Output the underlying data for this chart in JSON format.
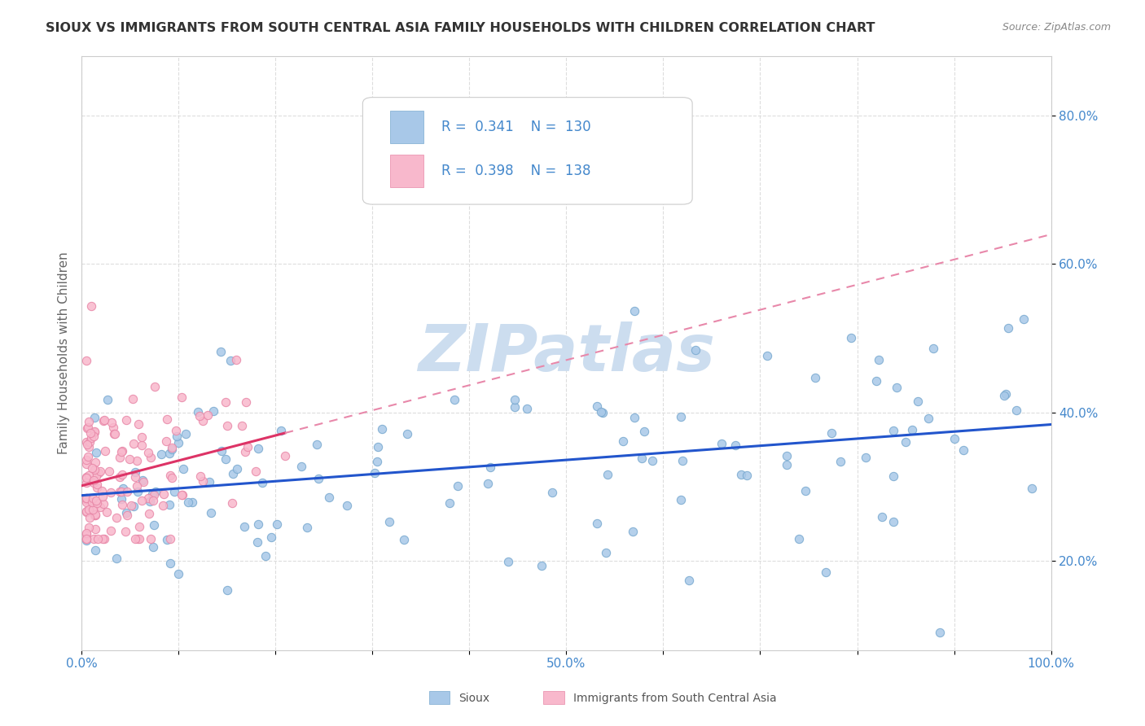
{
  "title": "SIOUX VS IMMIGRANTS FROM SOUTH CENTRAL ASIA FAMILY HOUSEHOLDS WITH CHILDREN CORRELATION CHART",
  "source": "Source: ZipAtlas.com",
  "ylabel": "Family Households with Children",
  "sioux_R": 0.341,
  "sioux_N": 130,
  "immig_R": 0.398,
  "immig_N": 138,
  "sioux_color": "#a8c8e8",
  "sioux_edge_color": "#7aaad0",
  "immig_color": "#f8b8cc",
  "immig_edge_color": "#e888a8",
  "sioux_line_color": "#2255cc",
  "immig_line_color": "#dd3366",
  "immig_dash_color": "#e888aa",
  "watermark_text": "ZIPatlas",
  "watermark_color": "#ccddef",
  "background_color": "#ffffff",
  "grid_color": "#dddddd",
  "title_color": "#333333",
  "title_fontsize": 11.5,
  "tick_color": "#4488cc",
  "legend_label_color": "#4488cc",
  "ylabel_color": "#666666",
  "xlim": [
    0.0,
    1.0
  ],
  "ylim": [
    0.08,
    0.88
  ],
  "ytick_pos": [
    0.2,
    0.4,
    0.6,
    0.8
  ],
  "ytick_labels": [
    "20.0%",
    "40.0%",
    "60.0%",
    "80.0%"
  ],
  "xtick_pos": [
    0.0,
    0.1,
    0.2,
    0.3,
    0.4,
    0.5,
    0.6,
    0.7,
    0.8,
    0.9,
    1.0
  ],
  "xtick_labels": [
    "0.0%",
    "",
    "",
    "",
    "",
    "50.0%",
    "",
    "",
    "",
    "",
    "100.0%"
  ]
}
